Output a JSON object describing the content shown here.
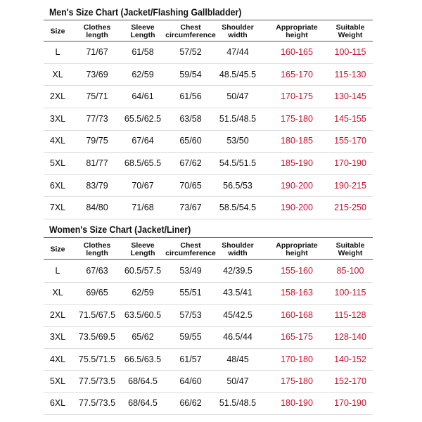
{
  "tables": [
    {
      "title": "Men's Size Chart (Jacket/Flashing Gallbladder)",
      "header": [
        [
          "Size"
        ],
        [
          "Clothes",
          "length"
        ],
        [
          "Sleeve",
          "Length"
        ],
        [
          "Chest",
          "circumference"
        ],
        [
          "Shoulder",
          "width"
        ],
        [
          "Appropriate",
          "height"
        ],
        [
          "Suitable",
          "Weight"
        ]
      ],
      "rows": [
        [
          "L",
          "71/67",
          "61/58",
          "57/52",
          "47/44",
          "160-165",
          "100-115"
        ],
        [
          "XL",
          "73/69",
          "62/59",
          "59/54",
          "48.5/45.5",
          "165-170",
          "115-130"
        ],
        [
          "2XL",
          "75/71",
          "64/61",
          "61/56",
          "50/47",
          "170-175",
          "130-145"
        ],
        [
          "3XL",
          "77/73",
          "65.5/62.5",
          "63/58",
          "51.5/48.5",
          "175-180",
          "145-155"
        ],
        [
          "4XL",
          "79/75",
          "67/64",
          "65/60",
          "53/50",
          "180-185",
          "155-170"
        ],
        [
          "5XL",
          "81/77",
          "68.5/65.5",
          "67/62",
          "54.5/51.5",
          "185-190",
          "170-190"
        ],
        [
          "6XL",
          "83/79",
          "70/67",
          "70/65",
          "56.5/53",
          "190-200",
          "190-215"
        ],
        [
          "7XL",
          "84/80",
          "71/68",
          "73/67",
          "58.5/54.5",
          "190-200",
          "215-250"
        ]
      ]
    },
    {
      "title": "Women's Size Chart (Jacket/Liner)",
      "header": [
        [
          "Size"
        ],
        [
          "Clothes",
          "length"
        ],
        [
          "Sleeve",
          "Length"
        ],
        [
          "Chest",
          "circumference"
        ],
        [
          "Shoulder",
          "width"
        ],
        [
          "Appropriate",
          "height"
        ],
        [
          "Suitable",
          "Weight"
        ]
      ],
      "rows": [
        [
          "L",
          "67/63",
          "60.5/57.5",
          "53/49",
          "42/39.5",
          "155-160",
          "85-100"
        ],
        [
          "XL",
          "69/65",
          "62/59",
          "55/51",
          "43.5/41",
          "158-163",
          "100-115"
        ],
        [
          "2XL",
          "71.5/67.5",
          "63.5/60.5",
          "57/53",
          "45/42.5",
          "160-168",
          "115-128"
        ],
        [
          "3XL",
          "73.5/69.5",
          "65/62",
          "59/55",
          "46.5/44",
          "165-175",
          "128-140"
        ],
        [
          "4XL",
          "75.5/71.5",
          "66.5/63.5",
          "61/57",
          "48/45",
          "170-180",
          "140-152"
        ],
        [
          "5XL",
          "77.5/73.5",
          "68/64.5",
          "64/60",
          "50/47",
          "175-180",
          "152-170"
        ],
        [
          "6XL",
          "77.5/73.5",
          "68/64.5",
          "66/62",
          "51.5/48.5",
          "180-190",
          "170-190"
        ]
      ]
    }
  ]
}
